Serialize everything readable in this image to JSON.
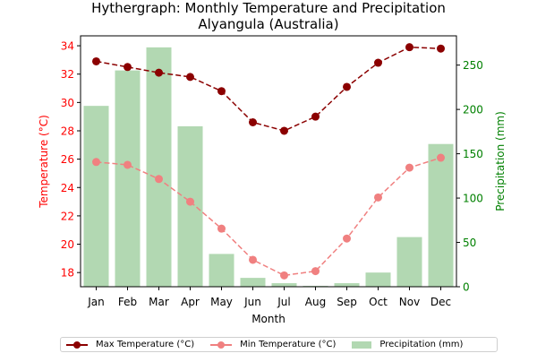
{
  "chart_data": {
    "type": "bar+line",
    "title": "Hythergraph: Monthly Temperature and Precipitation",
    "subtitle": "Alyangula (Australia)",
    "xlabel": "Month",
    "ylabel_left": "Temperature (°C)",
    "ylabel_right": "Precipitation (mm)",
    "categories": [
      "Jan",
      "Feb",
      "Mar",
      "Apr",
      "May",
      "Jun",
      "Jul",
      "Aug",
      "Sep",
      "Oct",
      "Nov",
      "Dec"
    ],
    "ylim_left": [
      17,
      34.7
    ],
    "ylim_right": [
      0,
      283
    ],
    "yticks_left": [
      18,
      20,
      22,
      24,
      26,
      28,
      30,
      32,
      34
    ],
    "yticks_right": [
      0,
      50,
      100,
      150,
      200,
      250
    ],
    "series": [
      {
        "name": "Max Temperature (°C)",
        "type": "line",
        "axis": "left",
        "color": "#8b0000",
        "values": [
          32.9,
          32.5,
          32.1,
          31.8,
          30.8,
          28.6,
          28.0,
          29.0,
          31.1,
          32.8,
          33.9,
          33.8
        ]
      },
      {
        "name": "Min Temperature (°C)",
        "type": "line",
        "axis": "left",
        "color": "#f08080",
        "values": [
          25.8,
          25.6,
          24.6,
          23.0,
          21.1,
          18.9,
          17.8,
          18.1,
          20.4,
          23.3,
          25.4,
          26.1
        ]
      },
      {
        "name": "Precipitation (mm)",
        "type": "bar",
        "axis": "right",
        "color": "#b2d8b2",
        "values": [
          204,
          244,
          270,
          181,
          37,
          10,
          4,
          1,
          4,
          16,
          56,
          161
        ]
      }
    ],
    "left_axis_color": "#ff0000",
    "right_axis_color": "#008000",
    "grid": false,
    "legend_position": "bottom"
  }
}
